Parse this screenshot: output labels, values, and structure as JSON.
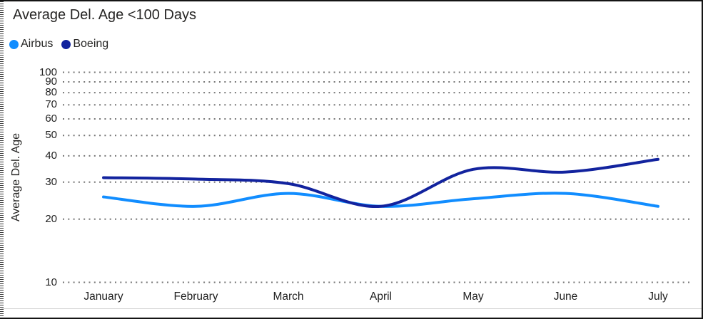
{
  "title": "Average Del. Age <100 Days",
  "legend": [
    {
      "label": "Airbus",
      "color": "#118DFF"
    },
    {
      "label": "Boeing",
      "color": "#12239E"
    }
  ],
  "chart_data": {
    "type": "line",
    "title": "Average Del. Age <100 Days",
    "categories": [
      "January",
      "February",
      "March",
      "April",
      "May",
      "June",
      "July"
    ],
    "series": [
      {
        "name": "Airbus",
        "color": "#118DFF",
        "values": [
          25.5,
          23,
          26.5,
          23,
          25,
          26.5,
          23
        ]
      },
      {
        "name": "Boeing",
        "color": "#12239E",
        "values": [
          31.5,
          31,
          29.5,
          23,
          34.5,
          33.5,
          38.5
        ]
      }
    ],
    "xlabel": "",
    "ylabel": "Average Del. Age",
    "y_scale": "log",
    "ylim": [
      10,
      100
    ],
    "y_ticks": [
      100,
      90,
      80,
      70,
      60,
      50,
      40,
      30,
      20,
      10
    ],
    "grid": "dotted-horizontal",
    "grid_color": "#757575",
    "legend_position": "top-left",
    "line_style": "smooth",
    "line_width": 4
  }
}
